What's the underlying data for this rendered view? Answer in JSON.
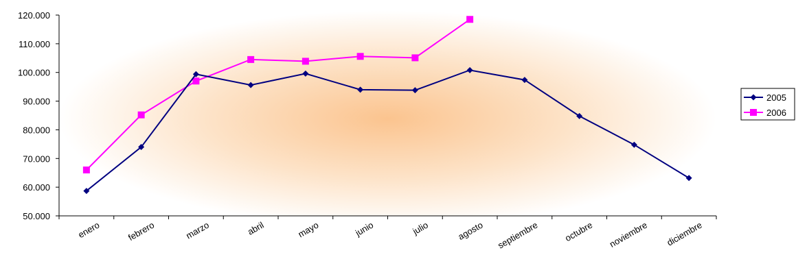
{
  "chart_data": {
    "type": "line",
    "title": "",
    "xlabel": "",
    "ylabel": "",
    "categories": [
      "enero",
      "febrero",
      "marzo",
      "abril",
      "mayo",
      "junio",
      "julio",
      "agosto",
      "septiembre",
      "octubre",
      "noviembre",
      "diciembre"
    ],
    "ylim": [
      50000,
      120000
    ],
    "yticks": [
      50000,
      60000,
      70000,
      80000,
      90000,
      100000,
      110000,
      120000
    ],
    "ytick_labels": [
      "50.000",
      "60.000",
      "70.000",
      "80.000",
      "90.000",
      "100.000",
      "110.000",
      "120.000"
    ],
    "grid": false,
    "legend_position": "right",
    "series": [
      {
        "name": "2005",
        "color": "#000080",
        "marker": "diamond",
        "values": [
          58700,
          74000,
          99400,
          95600,
          99600,
          94000,
          93800,
          100800,
          97400,
          84800,
          74800,
          63200
        ]
      },
      {
        "name": "2006",
        "color": "#ff00ff",
        "marker": "square",
        "values": [
          66000,
          85200,
          97000,
          104500,
          103900,
          105600,
          105100,
          118500,
          null,
          null,
          null,
          null
        ]
      }
    ]
  }
}
